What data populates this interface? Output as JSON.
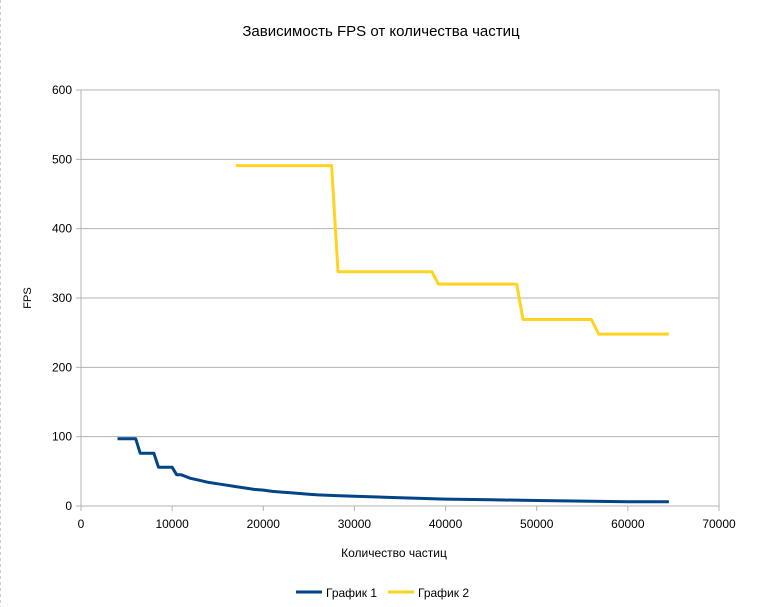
{
  "chart_data": {
    "type": "line",
    "title": "Зависимость FPS от количества частиц",
    "xlabel": "Количество частиц",
    "ylabel": "FPS",
    "xlim": [
      0,
      70000
    ],
    "ylim": [
      0,
      600
    ],
    "xticks": [
      0,
      10000,
      20000,
      30000,
      40000,
      50000,
      60000,
      70000
    ],
    "yticks": [
      0,
      100,
      200,
      300,
      400,
      500,
      600
    ],
    "grid": true,
    "legend_position": "bottom",
    "series": [
      {
        "name": "График 1",
        "color": "#004586",
        "x": [
          4000,
          5000,
          6000,
          6500,
          7000,
          8000,
          8500,
          9000,
          10000,
          10500,
          11000,
          12000,
          13000,
          14000,
          15000,
          16000,
          17000,
          18000,
          19000,
          20000,
          21000,
          22000,
          23000,
          24000,
          25000,
          26000,
          28000,
          30000,
          35000,
          40000,
          45000,
          50000,
          55000,
          60000,
          64500
        ],
        "y": [
          97,
          97,
          97,
          76,
          76,
          76,
          56,
          56,
          56,
          45,
          45,
          40,
          37,
          34,
          32,
          30,
          28,
          26,
          24,
          23,
          21,
          20,
          19,
          18,
          17,
          16,
          15,
          14,
          12,
          10,
          9,
          8,
          7,
          6,
          6
        ]
      },
      {
        "name": "График 2",
        "color": "#ffd320",
        "x": [
          17000,
          27500,
          28200,
          38500,
          39200,
          47800,
          48500,
          56000,
          56800,
          64500
        ],
        "y": [
          491,
          491,
          338,
          338,
          320,
          320,
          269,
          269,
          248,
          248
        ]
      }
    ]
  }
}
